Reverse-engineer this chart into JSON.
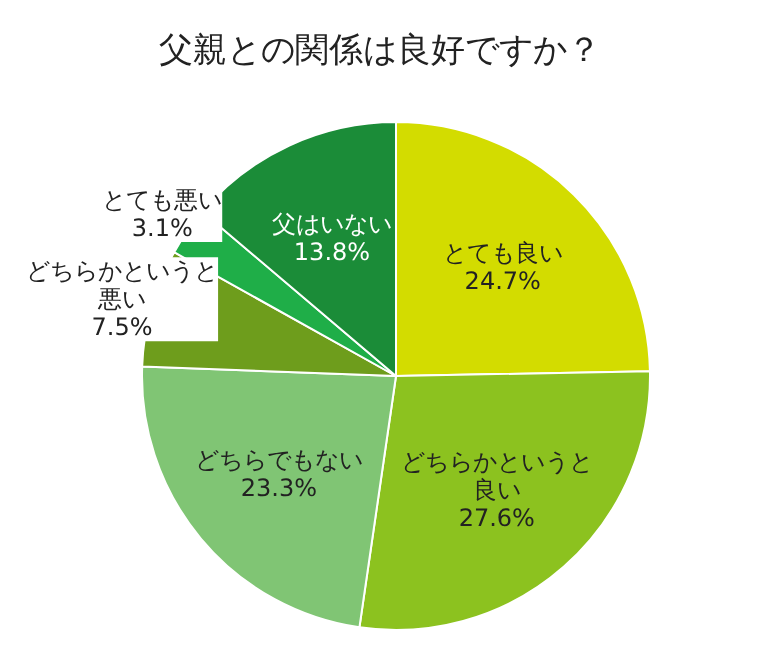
{
  "chart_data": {
    "type": "pie",
    "title": "父親との関係は良好ですか？",
    "categories": [
      "とても良い",
      "どちらかというと良い",
      "どちらでもない",
      "どちらかというと悪い",
      "とても悪い",
      "父はいない"
    ],
    "values": [
      24.7,
      27.6,
      23.3,
      7.5,
      3.1,
      13.8
    ],
    "value_labels": [
      "24.7%",
      "27.6%",
      "23.3%",
      "7.5%",
      "3.1%",
      "13.8%"
    ],
    "colors": [
      "#d3dc00",
      "#8cc21f",
      "#80c574",
      "#6e9d1c",
      "#1fae48",
      "#1b8c38"
    ],
    "legend": false
  }
}
